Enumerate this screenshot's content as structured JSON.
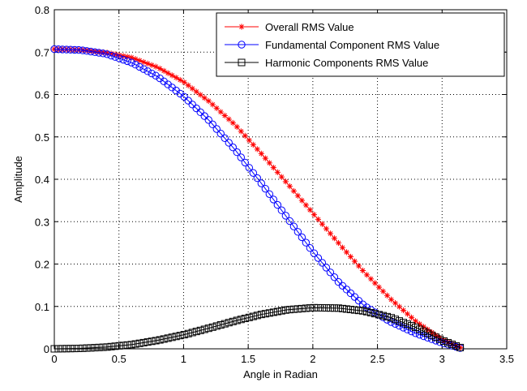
{
  "chart_data": {
    "type": "line",
    "title": "",
    "xlabel": "Angle in Radian",
    "ylabel": "Amplitude",
    "xlim": [
      0,
      3.5
    ],
    "ylim": [
      0,
      0.8
    ],
    "xticks": [
      "0",
      "0.5",
      "1",
      "1.5",
      "2",
      "2.5",
      "3",
      "3.5"
    ],
    "yticks": [
      "0",
      "0.1",
      "0.2",
      "0.3",
      "0.4",
      "0.5",
      "0.6",
      "0.7",
      "0.8"
    ],
    "grid": true,
    "legend_position": "top-right",
    "x": [
      0.0,
      0.2,
      0.4,
      0.6,
      0.8,
      1.0,
      1.2,
      1.4,
      1.6,
      1.8,
      2.0,
      2.2,
      2.4,
      2.6,
      2.8,
      3.0,
      3.14
    ],
    "series": [
      {
        "name": "Overall RMS Value",
        "color": "#ff0000",
        "marker": "asterisk",
        "values": [
          0.707,
          0.706,
          0.699,
          0.687,
          0.664,
          0.63,
          0.583,
          0.528,
          0.461,
          0.391,
          0.32,
          0.249,
          0.18,
          0.118,
          0.064,
          0.022,
          0.003
        ]
      },
      {
        "name": "Fundamental Component RMS Value",
        "color": "#0000ff",
        "marker": "circle",
        "values": [
          0.707,
          0.705,
          0.696,
          0.675,
          0.642,
          0.596,
          0.538,
          0.469,
          0.391,
          0.31,
          0.229,
          0.157,
          0.101,
          0.064,
          0.036,
          0.014,
          0.002
        ]
      },
      {
        "name": "Harmonic Components RMS Value",
        "color": "#000000",
        "marker": "square",
        "values": [
          0.0,
          0.001,
          0.004,
          0.01,
          0.02,
          0.033,
          0.049,
          0.066,
          0.081,
          0.092,
          0.097,
          0.096,
          0.089,
          0.074,
          0.05,
          0.02,
          0.003
        ]
      }
    ]
  }
}
